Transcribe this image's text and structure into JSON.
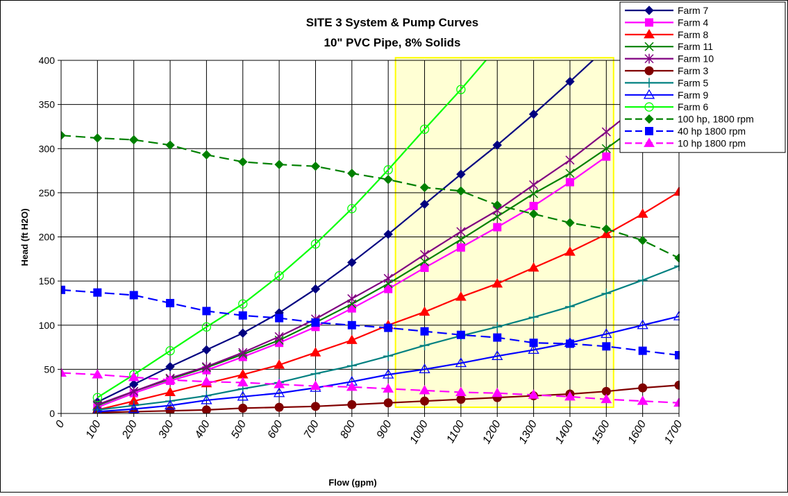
{
  "chart_data": {
    "type": "line",
    "title": "SITE 3 System & Pump Curves",
    "subtitle": "10\" PVC Pipe, 8% Solids",
    "xlabel": "Flow (gpm)",
    "ylabel": "Head (ft H2O)",
    "xlim": [
      0,
      1700
    ],
    "ylim": [
      0,
      400
    ],
    "x_ticks": [
      "0",
      "100",
      "200",
      "300",
      "400",
      "500",
      "600",
      "700",
      "800",
      "900",
      "1000",
      "1100",
      "1200",
      "1300",
      "1400",
      "1500",
      "1600",
      "1700"
    ],
    "y_ticks": [
      "0",
      "50",
      "100",
      "150",
      "200",
      "250",
      "300",
      "350",
      "400"
    ],
    "grid": true,
    "legend_position": "top-right",
    "highlight_region": {
      "x_range": [
        920,
        1520
      ],
      "y_range": [
        7,
        403
      ],
      "color": "#ffffcc",
      "border_color": "#ffff00"
    },
    "series": [
      {
        "name": "Farm 7",
        "color": "#000080",
        "marker": "diamond",
        "dash": false,
        "x": [
          100,
          200,
          300,
          400,
          500,
          600,
          700,
          800,
          900,
          1000,
          1100,
          1200,
          1300,
          1400,
          1500
        ],
        "y": [
          13,
          33,
          53,
          72,
          91,
          114,
          141,
          171,
          203,
          237,
          271,
          304,
          339,
          376,
          414
        ]
      },
      {
        "name": "Farm 4",
        "color": "#ff00ff",
        "marker": "square",
        "dash": false,
        "x": [
          100,
          200,
          300,
          400,
          500,
          600,
          700,
          800,
          900,
          1000,
          1100,
          1200,
          1300,
          1400,
          1500
        ],
        "y": [
          7,
          23,
          37,
          49,
          64,
          80,
          98,
          119,
          141,
          165,
          188,
          211,
          235,
          262,
          291
        ]
      },
      {
        "name": "Farm 8",
        "color": "#ff0000",
        "marker": "triangle",
        "dash": false,
        "x": [
          100,
          200,
          300,
          400,
          500,
          600,
          700,
          800,
          900,
          1000,
          1100,
          1200,
          1300,
          1400,
          1500,
          1600,
          1700
        ],
        "y": [
          4,
          14,
          24,
          34,
          44,
          55,
          69,
          83,
          100,
          115,
          132,
          147,
          165,
          183,
          203,
          226,
          251
        ]
      },
      {
        "name": "Farm 11",
        "color": "#008000",
        "marker": "x",
        "dash": false,
        "x": [
          100,
          200,
          300,
          400,
          500,
          600,
          700,
          800,
          900,
          1000,
          1100,
          1200,
          1300,
          1400,
          1500,
          1600
        ],
        "y": [
          9,
          25,
          39,
          52,
          67,
          83,
          103,
          124,
          147,
          172,
          197,
          223,
          249,
          272,
          300,
          330
        ]
      },
      {
        "name": "Farm 10",
        "color": "#800080",
        "marker": "star",
        "dash": false,
        "x": [
          100,
          200,
          300,
          400,
          500,
          600,
          700,
          800,
          900,
          1000,
          1100,
          1200,
          1300,
          1400,
          1500,
          1600
        ],
        "y": [
          10,
          25,
          40,
          53,
          69,
          87,
          107,
          130,
          153,
          180,
          206,
          230,
          259,
          287,
          319,
          352
        ]
      },
      {
        "name": "Farm 3",
        "color": "#800000",
        "marker": "circle",
        "dash": false,
        "x": [
          100,
          200,
          300,
          400,
          500,
          600,
          700,
          800,
          900,
          1000,
          1100,
          1200,
          1300,
          1400,
          1500,
          1600,
          1700
        ],
        "y": [
          1,
          2,
          3,
          4,
          6,
          7,
          8,
          10,
          12,
          14,
          16,
          18,
          20,
          22,
          25,
          29,
          32
        ]
      },
      {
        "name": "Farm 5",
        "color": "#008080",
        "marker": "plus",
        "dash": false,
        "x": [
          100,
          200,
          300,
          400,
          500,
          600,
          700,
          800,
          900,
          1000,
          1100,
          1200,
          1300,
          1400,
          1500,
          1600,
          1700
        ],
        "y": [
          4,
          9,
          14,
          20,
          28,
          35,
          45,
          54,
          65,
          77,
          88,
          98,
          109,
          121,
          136,
          151,
          167
        ]
      },
      {
        "name": "Farm 9",
        "color": "#0000ff",
        "marker": "triangle-open",
        "dash": false,
        "x": [
          100,
          200,
          300,
          400,
          500,
          600,
          700,
          800,
          900,
          1000,
          1100,
          1200,
          1300,
          1400,
          1500,
          1600,
          1700
        ],
        "y": [
          2,
          5,
          9,
          15,
          19,
          23,
          29,
          36,
          44,
          50,
          57,
          65,
          72,
          80,
          90,
          100,
          110
        ]
      },
      {
        "name": "Farm 6",
        "color": "#00ff00",
        "marker": "circle-open",
        "dash": false,
        "x": [
          100,
          200,
          300,
          400,
          500,
          600,
          700,
          800,
          900,
          1000,
          1100,
          1200
        ],
        "y": [
          18,
          44,
          71,
          98,
          124,
          156,
          192,
          232,
          276,
          322,
          367,
          415
        ]
      },
      {
        "name": "100 hp, 1800 rpm",
        "color": "#008000",
        "marker": "diamond",
        "dash": true,
        "x": [
          0,
          100,
          200,
          300,
          400,
          500,
          600,
          700,
          800,
          900,
          1000,
          1100,
          1200,
          1300,
          1400,
          1500,
          1600,
          1700
        ],
        "y": [
          315,
          312,
          310,
          304,
          293,
          285,
          282,
          280,
          272,
          265,
          256,
          252,
          236,
          226,
          216,
          209,
          196,
          176
        ]
      },
      {
        "name": "40 hp 1800 rpm",
        "color": "#0000ff",
        "marker": "square",
        "dash": true,
        "x": [
          0,
          100,
          200,
          300,
          400,
          500,
          600,
          700,
          800,
          900,
          1000,
          1100,
          1200,
          1300,
          1400,
          1500,
          1600,
          1700
        ],
        "y": [
          140,
          137,
          134,
          125,
          116,
          111,
          108,
          103,
          100,
          97,
          93,
          89,
          86,
          80,
          79,
          76,
          71,
          66
        ]
      },
      {
        "name": "10 hp 1800 rpm",
        "color": "#ff00ff",
        "marker": "triangle",
        "dash": true,
        "x": [
          0,
          100,
          200,
          300,
          400,
          500,
          600,
          700,
          800,
          900,
          1000,
          1100,
          1200,
          1300,
          1400,
          1500,
          1600,
          1700
        ],
        "y": [
          46,
          44,
          41,
          38,
          36,
          35,
          33,
          31,
          30,
          28,
          26,
          24,
          23,
          21,
          19,
          16,
          14,
          12
        ]
      }
    ]
  }
}
